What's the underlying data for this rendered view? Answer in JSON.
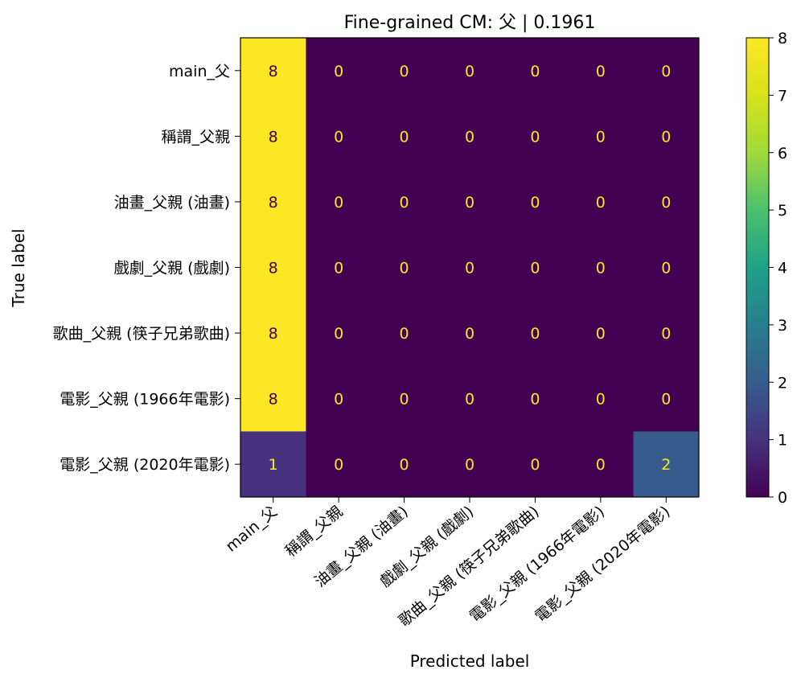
{
  "chart_data": {
    "type": "heatmap",
    "title": "Fine-grained CM: 父 | 0.1961",
    "xlabel": "Predicted label",
    "ylabel": "True label",
    "labels": [
      "main_父",
      "稱謂_父親",
      "油畫_父親 (油畫)",
      "戲劇_父親 (戲劇)",
      "歌曲_父親 (筷子兄弟歌曲)",
      "電影_父親 (1966年電影)",
      "電影_父親 (2020年電影)"
    ],
    "matrix": [
      [
        8,
        0,
        0,
        0,
        0,
        0,
        0
      ],
      [
        8,
        0,
        0,
        0,
        0,
        0,
        0
      ],
      [
        8,
        0,
        0,
        0,
        0,
        0,
        0
      ],
      [
        8,
        0,
        0,
        0,
        0,
        0,
        0
      ],
      [
        8,
        0,
        0,
        0,
        0,
        0,
        0
      ],
      [
        8,
        0,
        0,
        0,
        0,
        0,
        0
      ],
      [
        1,
        0,
        0,
        0,
        0,
        0,
        2
      ]
    ],
    "colorbar": {
      "ticks": [
        "0",
        "1",
        "2",
        "3",
        "4",
        "5",
        "6",
        "7",
        "8"
      ],
      "range": [
        0,
        8
      ],
      "colormap": "viridis"
    },
    "colors": {
      "low": "#440154",
      "high": "#fde725",
      "text_on_dark": "#fde725",
      "text_on_light": "#440154"
    }
  }
}
